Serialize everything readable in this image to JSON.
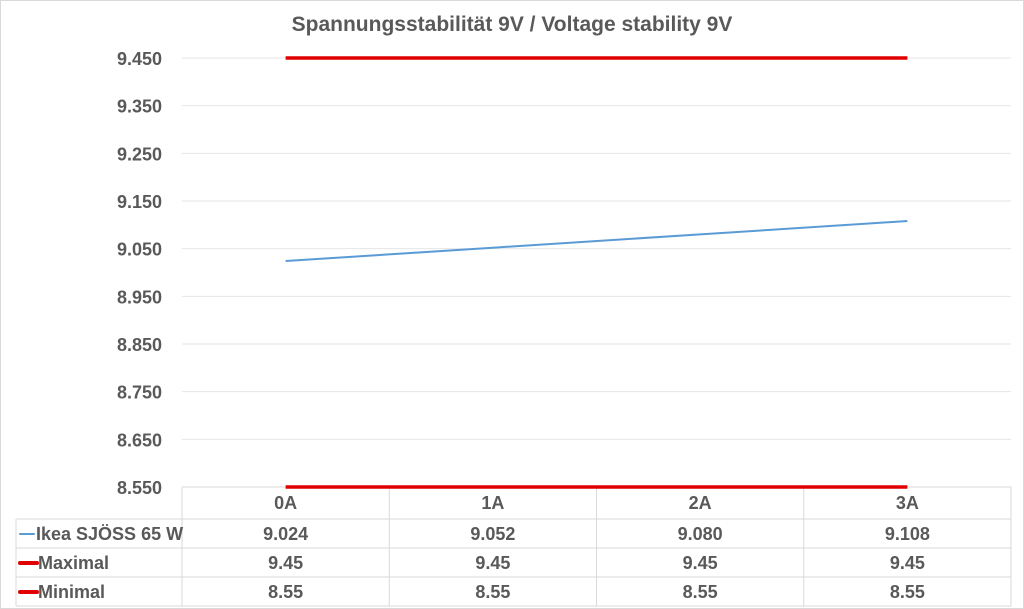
{
  "chart_data": {
    "type": "line",
    "title": "Spannungsstabilität 9V / Voltage stability 9V",
    "categories": [
      "0A",
      "1A",
      "2A",
      "3A"
    ],
    "ylim": [
      8.55,
      9.45
    ],
    "yticks": [
      "9.450",
      "9.350",
      "9.250",
      "9.150",
      "9.050",
      "8.950",
      "8.850",
      "8.750",
      "8.650",
      "8.550"
    ],
    "grid": true,
    "legend": "data-table",
    "series": [
      {
        "name": "Ikea SJÖSS 65 W",
        "values": [
          9.024,
          9.052,
          9.08,
          9.108
        ],
        "labels": [
          "9.024",
          "9.052",
          "9.080",
          "9.108"
        ],
        "color": "#5b9bd5"
      },
      {
        "name": "Maximal",
        "values": [
          9.45,
          9.45,
          9.45,
          9.45
        ],
        "labels": [
          "9.45",
          "9.45",
          "9.45",
          "9.45"
        ],
        "color": "#e00000"
      },
      {
        "name": "Minimal",
        "values": [
          8.55,
          8.55,
          8.55,
          8.55
        ],
        "labels": [
          "8.55",
          "8.55",
          "8.55",
          "8.55"
        ],
        "color": "#e00000"
      }
    ]
  }
}
